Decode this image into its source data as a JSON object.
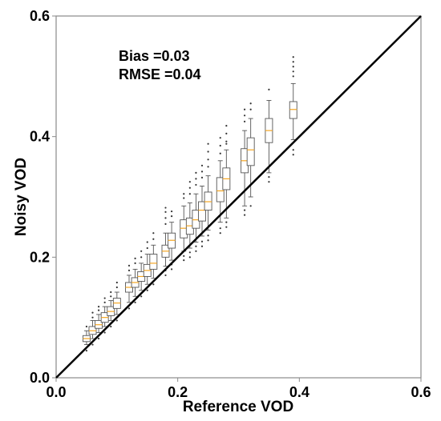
{
  "chart_data": {
    "type": "box",
    "title": "",
    "xlabel": "Reference VOD",
    "ylabel": "Noisy VOD",
    "xlim": [
      0.0,
      0.6
    ],
    "ylim": [
      0.0,
      0.6
    ],
    "xticks": [
      "0.0",
      "0.2",
      "0.4",
      "0.6"
    ],
    "yticks": [
      "0.0",
      "0.2",
      "0.4",
      "0.6"
    ],
    "annotations": [
      "Bias =0.03",
      "RMSE =0.04"
    ],
    "reference_line": {
      "from": [
        0.0,
        0.0
      ],
      "to": [
        0.6,
        0.6
      ]
    },
    "grid": false,
    "colors": {
      "box": "#555555",
      "median": "#f5a623",
      "line": "#000000",
      "flier": "#333333"
    },
    "boxes": [
      {
        "x": 0.05,
        "low": 0.055,
        "q1": 0.06,
        "median": 0.065,
        "q3": 0.07,
        "high": 0.078,
        "fliers": [
          0.045,
          0.085
        ]
      },
      {
        "x": 0.06,
        "low": 0.065,
        "q1": 0.072,
        "median": 0.078,
        "q3": 0.085,
        "high": 0.095,
        "fliers": [
          0.055,
          0.1,
          0.108
        ]
      },
      {
        "x": 0.07,
        "low": 0.075,
        "q1": 0.082,
        "median": 0.088,
        "q3": 0.095,
        "high": 0.105,
        "fliers": [
          0.065,
          0.112,
          0.118
        ]
      },
      {
        "x": 0.08,
        "low": 0.085,
        "q1": 0.092,
        "median": 0.1,
        "q3": 0.108,
        "high": 0.118,
        "fliers": [
          0.075,
          0.125,
          0.132
        ]
      },
      {
        "x": 0.09,
        "low": 0.095,
        "q1": 0.103,
        "median": 0.11,
        "q3": 0.118,
        "high": 0.128,
        "fliers": [
          0.085,
          0.135,
          0.142
        ]
      },
      {
        "x": 0.1,
        "low": 0.105,
        "q1": 0.115,
        "median": 0.124,
        "q3": 0.132,
        "high": 0.142,
        "fliers": [
          0.095,
          0.15,
          0.158
        ]
      },
      {
        "x": 0.12,
        "low": 0.125,
        "q1": 0.142,
        "median": 0.15,
        "q3": 0.158,
        "high": 0.17,
        "fliers": [
          0.115,
          0.178,
          0.186
        ]
      },
      {
        "x": 0.13,
        "low": 0.135,
        "q1": 0.15,
        "median": 0.158,
        "q3": 0.166,
        "high": 0.18,
        "fliers": [
          0.125,
          0.19,
          0.198
        ]
      },
      {
        "x": 0.14,
        "low": 0.145,
        "q1": 0.16,
        "median": 0.168,
        "q3": 0.176,
        "high": 0.19,
        "fliers": [
          0.135,
          0.2,
          0.21
        ]
      },
      {
        "x": 0.15,
        "low": 0.155,
        "q1": 0.168,
        "median": 0.178,
        "q3": 0.188,
        "high": 0.205,
        "fliers": [
          0.145,
          0.215,
          0.225
        ]
      },
      {
        "x": 0.16,
        "low": 0.165,
        "q1": 0.18,
        "median": 0.19,
        "q3": 0.205,
        "high": 0.22,
        "fliers": [
          0.155,
          0.23,
          0.24
        ]
      },
      {
        "x": 0.18,
        "low": 0.185,
        "q1": 0.2,
        "median": 0.21,
        "q3": 0.22,
        "high": 0.24,
        "fliers": [
          0.17,
          0.178,
          0.255,
          0.265,
          0.275,
          0.282
        ]
      },
      {
        "x": 0.19,
        "low": 0.195,
        "q1": 0.215,
        "median": 0.228,
        "q3": 0.24,
        "high": 0.258,
        "fliers": [
          0.18,
          0.188,
          0.268,
          0.276
        ]
      },
      {
        "x": 0.21,
        "low": 0.21,
        "q1": 0.232,
        "median": 0.248,
        "q3": 0.262,
        "high": 0.285,
        "fliers": [
          0.195,
          0.202,
          0.298,
          0.305
        ]
      },
      {
        "x": 0.22,
        "low": 0.215,
        "q1": 0.238,
        "median": 0.252,
        "q3": 0.265,
        "high": 0.29,
        "fliers": [
          0.2,
          0.208,
          0.305,
          0.315,
          0.325
        ]
      },
      {
        "x": 0.23,
        "low": 0.225,
        "q1": 0.248,
        "median": 0.262,
        "q3": 0.278,
        "high": 0.305,
        "fliers": [
          0.21,
          0.218,
          0.32,
          0.33,
          0.34
        ]
      },
      {
        "x": 0.24,
        "low": 0.235,
        "q1": 0.26,
        "median": 0.278,
        "q3": 0.292,
        "high": 0.318,
        "fliers": [
          0.218,
          0.226,
          0.332,
          0.342,
          0.352
        ]
      },
      {
        "x": 0.25,
        "low": 0.245,
        "q1": 0.278,
        "median": 0.292,
        "q3": 0.308,
        "high": 0.335,
        "fliers": [
          0.228,
          0.236,
          0.35,
          0.362,
          0.375,
          0.388
        ]
      },
      {
        "x": 0.27,
        "low": 0.258,
        "q1": 0.292,
        "median": 0.31,
        "q3": 0.332,
        "high": 0.36,
        "fliers": [
          0.24,
          0.248,
          0.372,
          0.385,
          0.398
        ]
      },
      {
        "x": 0.28,
        "low": 0.265,
        "q1": 0.312,
        "median": 0.33,
        "q3": 0.348,
        "high": 0.378,
        "fliers": [
          0.25,
          0.258,
          0.392,
          0.405,
          0.418,
          0.388
        ]
      },
      {
        "x": 0.31,
        "low": 0.285,
        "q1": 0.34,
        "median": 0.36,
        "q3": 0.38,
        "high": 0.41,
        "fliers": [
          0.27,
          0.278,
          0.425,
          0.435,
          0.445
        ]
      },
      {
        "x": 0.32,
        "low": 0.3,
        "q1": 0.352,
        "median": 0.378,
        "q3": 0.398,
        "high": 0.43,
        "fliers": [
          0.285,
          0.445,
          0.455
        ]
      },
      {
        "x": 0.35,
        "low": 0.34,
        "q1": 0.39,
        "median": 0.41,
        "q3": 0.43,
        "high": 0.46,
        "fliers": [
          0.325,
          0.333,
          0.478
        ]
      },
      {
        "x": 0.39,
        "low": 0.395,
        "q1": 0.43,
        "median": 0.445,
        "q3": 0.458,
        "high": 0.488,
        "fliers": [
          0.37,
          0.378,
          0.5,
          0.508,
          0.516,
          0.524,
          0.532
        ]
      }
    ]
  }
}
